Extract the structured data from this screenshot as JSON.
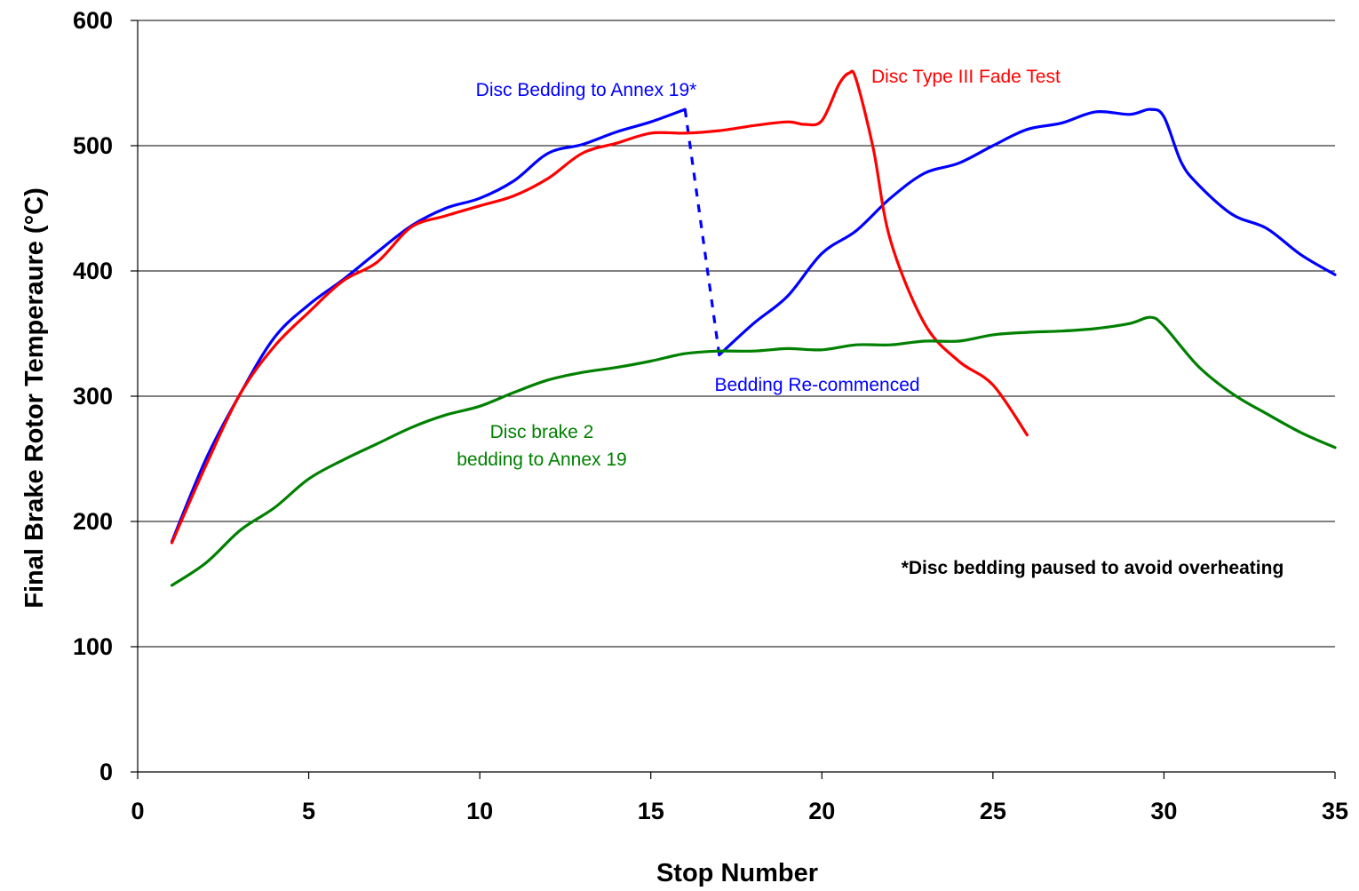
{
  "chart_data": {
    "type": "line",
    "title": "",
    "xlabel": "Stop Number",
    "ylabel": "Final Brake Rotor Temperaure (°C)",
    "xlim": [
      0,
      35
    ],
    "ylim": [
      0,
      600
    ],
    "x_ticks": [
      "0",
      "5",
      "10",
      "15",
      "20",
      "25",
      "30",
      "35"
    ],
    "y_ticks": [
      "0",
      "100",
      "200",
      "300",
      "400",
      "500",
      "600"
    ],
    "grid": "horizontal",
    "colors": {
      "blue": "#0000ff",
      "red": "#ff0000",
      "green": "#008000"
    },
    "series": [
      {
        "color": "#0000ff",
        "x": [
          1,
          2,
          3,
          4,
          5,
          6,
          7,
          8,
          9,
          10,
          11,
          12,
          13,
          14,
          15,
          16
        ],
        "y": [
          184,
          250,
          302,
          347,
          373,
          393,
          415,
          436,
          450,
          458,
          472,
          494,
          501,
          511,
          519,
          529
        ]
      },
      {
        "color": "#0000ff",
        "style": "dashed",
        "x": [
          16,
          17
        ],
        "y": [
          529,
          333
        ]
      },
      {
        "color": "#0000ff",
        "x": [
          17,
          18,
          19,
          20,
          21,
          22,
          23,
          24,
          25,
          26,
          27,
          28,
          29,
          29.6,
          30,
          30.5,
          31,
          32,
          33,
          34,
          35
        ],
        "y": [
          333,
          358,
          380,
          414,
          432,
          458,
          478,
          486,
          500,
          513,
          518,
          527,
          525,
          529,
          523,
          487,
          469,
          445,
          434,
          413,
          397
        ]
      },
      {
        "color": "#ff0000",
        "x": [
          1,
          2,
          3,
          4,
          5,
          6,
          7,
          8,
          9,
          10,
          11,
          12,
          13,
          14,
          15,
          16,
          17,
          18,
          19,
          19.5,
          20,
          20.5,
          20.8,
          21,
          21.5,
          22,
          23,
          24,
          25,
          26
        ],
        "y": [
          183,
          245,
          302,
          340,
          367,
          392,
          407,
          435,
          444,
          452,
          460,
          474,
          494,
          502,
          510,
          510,
          512,
          516,
          519,
          517,
          520,
          549,
          558,
          553,
          498,
          425,
          358,
          328,
          309,
          269
        ]
      },
      {
        "color": "#008000",
        "x": [
          1,
          2,
          3,
          4,
          5,
          6,
          7,
          8,
          9,
          10,
          11,
          12,
          13,
          14,
          15,
          16,
          17,
          18,
          19,
          20,
          21,
          22,
          23,
          24,
          25,
          26,
          27,
          28,
          29,
          29.6,
          30,
          31,
          32,
          33,
          34,
          35
        ],
        "y": [
          149,
          167,
          193,
          211,
          234,
          249,
          262,
          275,
          285,
          292,
          303,
          313,
          319,
          323,
          328,
          334,
          336,
          336,
          338,
          337,
          341,
          341,
          344,
          344,
          349,
          351,
          352,
          354,
          358,
          363,
          356,
          324,
          302,
          286,
          271,
          259
        ]
      }
    ],
    "annotations": [
      {
        "text": "Disc Bedding to Annex 19*",
        "color": "#0000ff"
      },
      {
        "text": "Disc Type III Fade Test",
        "color": "#ff0000"
      },
      {
        "text": "Bedding Re-commenced",
        "color": "#0000ff"
      },
      {
        "text": "Disc brake 2",
        "color": "#008000"
      },
      {
        "text": "bedding to Annex 19",
        "color": "#008000"
      },
      {
        "text": "*Disc bedding paused to avoid overheating",
        "color": "#000000"
      }
    ]
  }
}
